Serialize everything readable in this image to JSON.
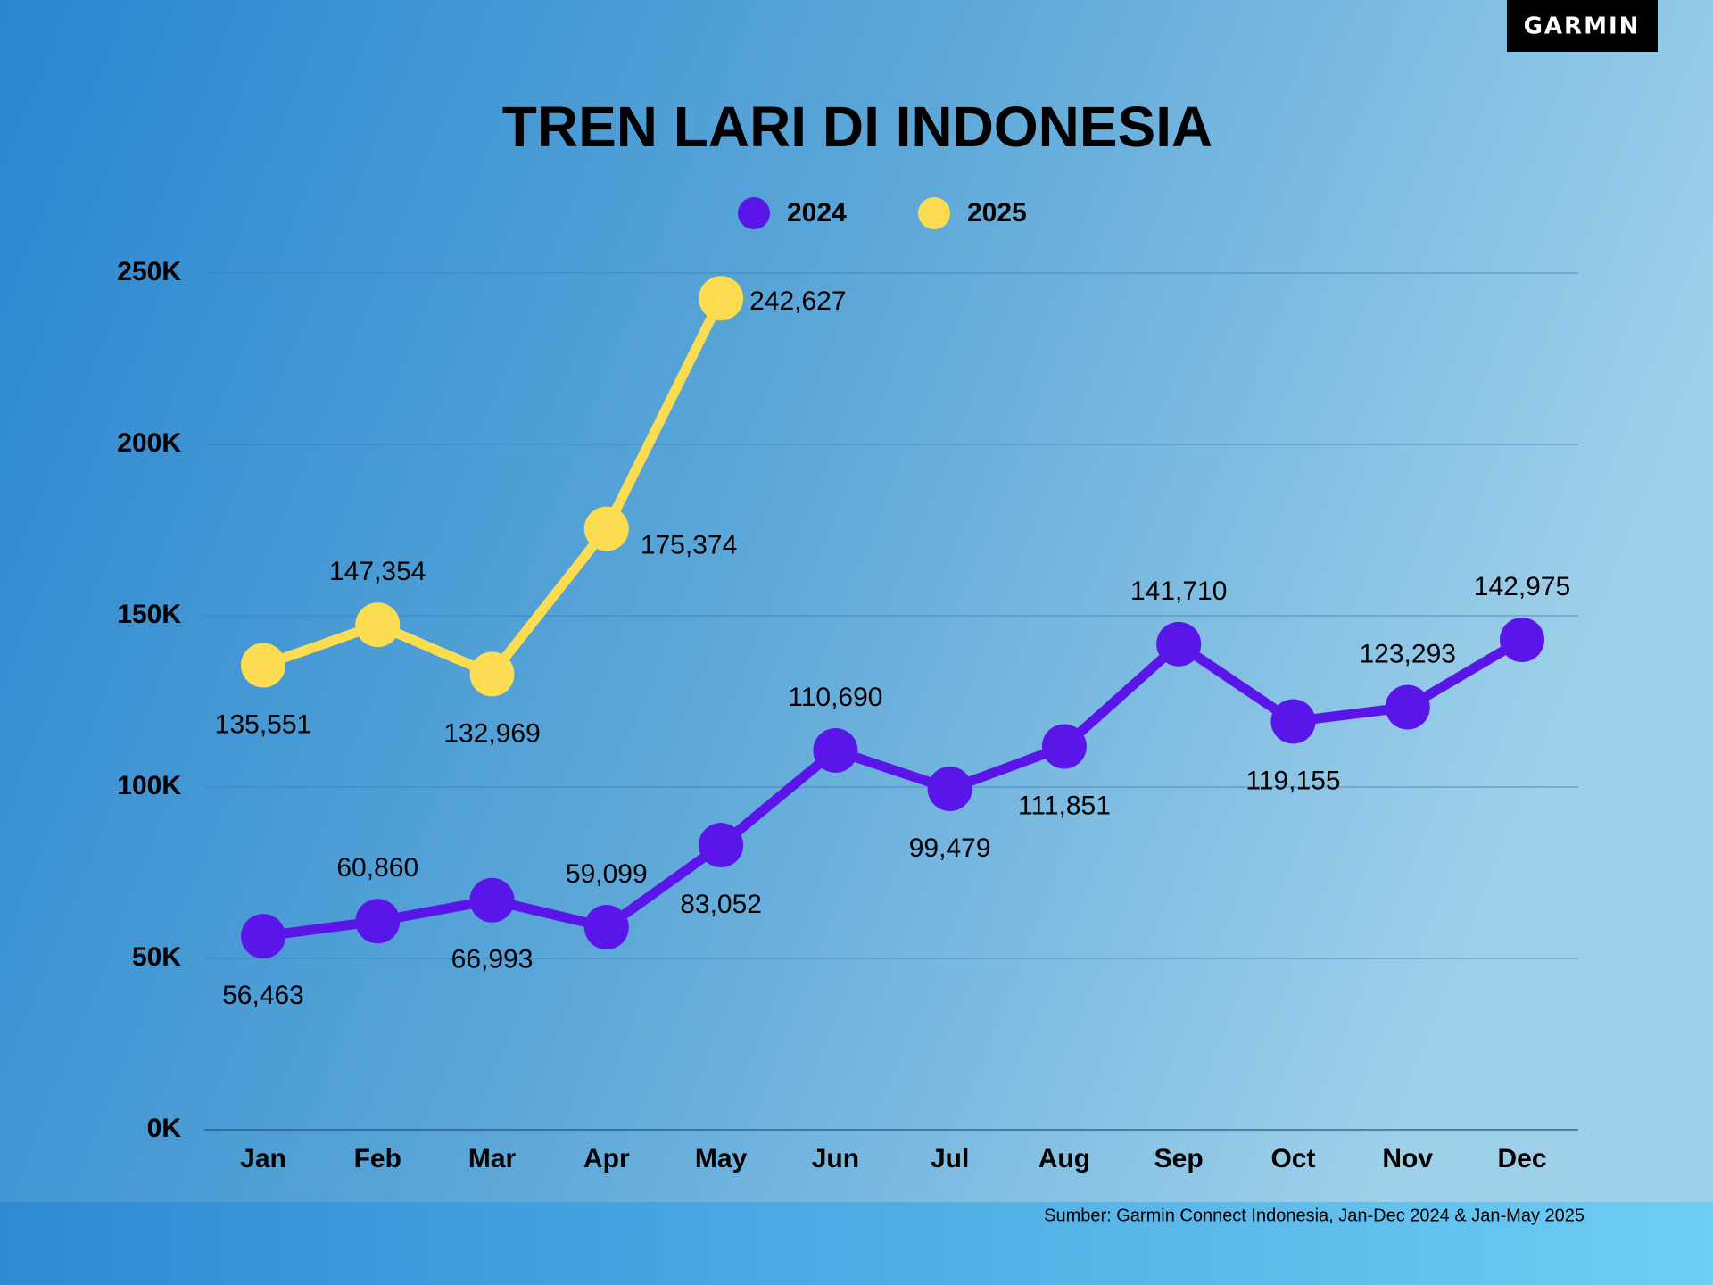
{
  "chart_data": {
    "type": "line",
    "title": "TREN LARI DI INDONESIA",
    "brand": "GARMIN",
    "source": "Sumber: Garmin Connect Indonesia, Jan-Dec 2024 & Jan-May 2025",
    "categories": [
      "Jan",
      "Feb",
      "Mar",
      "Apr",
      "May",
      "Jun",
      "Jul",
      "Aug",
      "Sep",
      "Oct",
      "Nov",
      "Dec"
    ],
    "series": [
      {
        "name": "2024",
        "color": "#5a16e8",
        "values": [
          56463,
          60860,
          66993,
          59099,
          83052,
          110690,
          99479,
          111851,
          141710,
          119155,
          123293,
          142975
        ],
        "value_labels": [
          "56,463",
          "60,860",
          "66,993",
          "59,099",
          "83,052",
          "110,690",
          "99,479",
          "111,851",
          "141,710",
          "119,155",
          "123,293",
          "142,975"
        ]
      },
      {
        "name": "2025",
        "color": "#fcdc50",
        "values": [
          135551,
          147354,
          132969,
          175374,
          242627,
          null,
          null,
          null,
          null,
          null,
          null,
          null
        ],
        "value_labels": [
          "135,551",
          "147,354",
          "132,969",
          "175,374",
          "242,627",
          null,
          null,
          null,
          null,
          null,
          null,
          null
        ]
      }
    ],
    "ylim": [
      0,
      250000
    ],
    "yticks": [
      {
        "value": 0,
        "label": "0K"
      },
      {
        "value": 50000,
        "label": "50K"
      },
      {
        "value": 100000,
        "label": "100K"
      },
      {
        "value": 150000,
        "label": "150K"
      },
      {
        "value": 200000,
        "label": "200K"
      },
      {
        "value": 250000,
        "label": "250K"
      }
    ],
    "grid": true,
    "legend": "top"
  }
}
